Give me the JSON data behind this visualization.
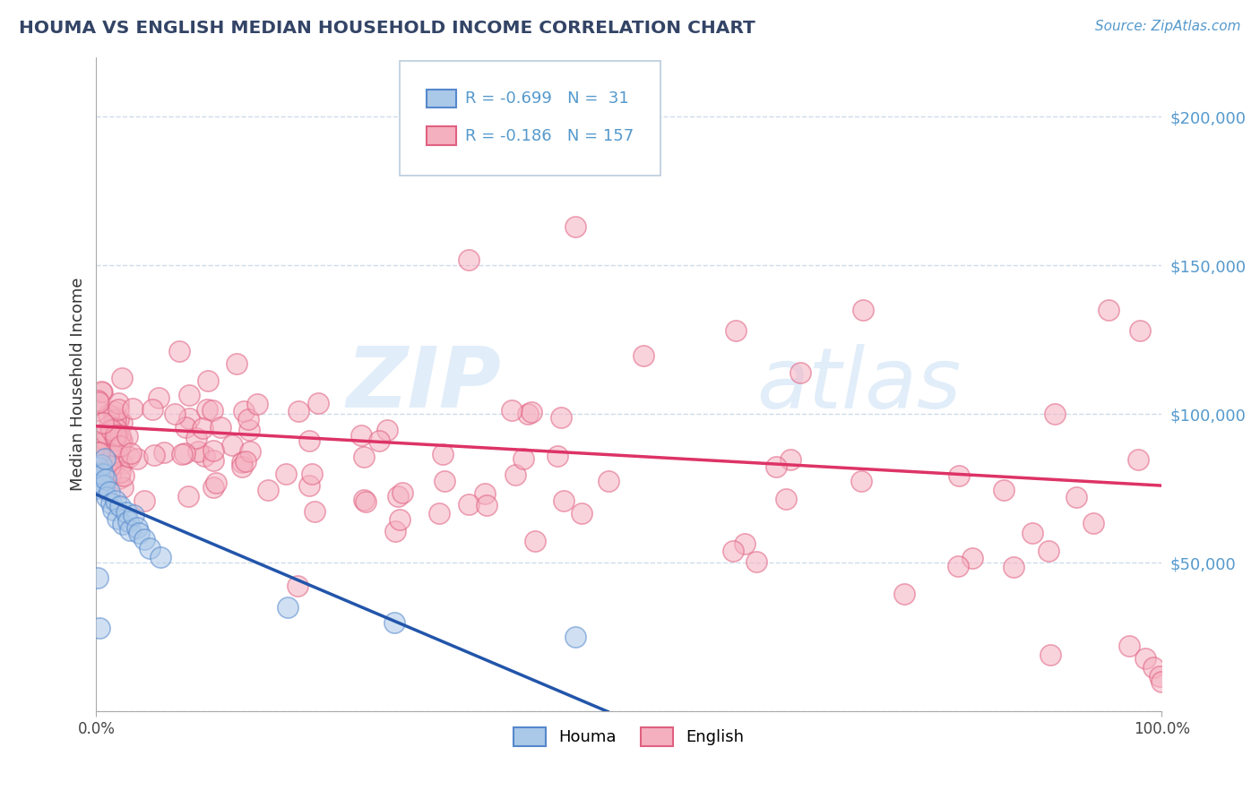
{
  "title": "HOUMA VS ENGLISH MEDIAN HOUSEHOLD INCOME CORRELATION CHART",
  "source": "Source: ZipAtlas.com",
  "ylabel": "Median Household Income",
  "xlabel": "",
  "xlim": [
    0.0,
    1.0
  ],
  "ylim": [
    0,
    220000
  ],
  "yticks": [
    0,
    50000,
    100000,
    150000,
    200000
  ],
  "ytick_labels": [
    "",
    "$50,000",
    "$100,000",
    "$150,000",
    "$200,000"
  ],
  "xtick_positions": [
    0.0,
    1.0
  ],
  "xtick_labels": [
    "0.0%",
    "100.0%"
  ],
  "houma_R": "-0.699",
  "houma_N": "31",
  "english_R": "-0.186",
  "english_N": "157",
  "houma_color": "#aac8e8",
  "houma_edge_color": "#5588cc",
  "houma_line_color": "#2255aa",
  "english_color": "#f5b0c0",
  "english_edge_color": "#e06080",
  "english_line_color": "#dd3366",
  "background_color": "#ffffff",
  "watermark_zip": "ZIP",
  "watermark_atlas": "atlas",
  "legend_houma": "Houma",
  "legend_english": "English",
  "grid_color": "#c8d8e8",
  "title_color": "#334466",
  "source_color": "#5599cc",
  "ytick_color": "#5599cc"
}
